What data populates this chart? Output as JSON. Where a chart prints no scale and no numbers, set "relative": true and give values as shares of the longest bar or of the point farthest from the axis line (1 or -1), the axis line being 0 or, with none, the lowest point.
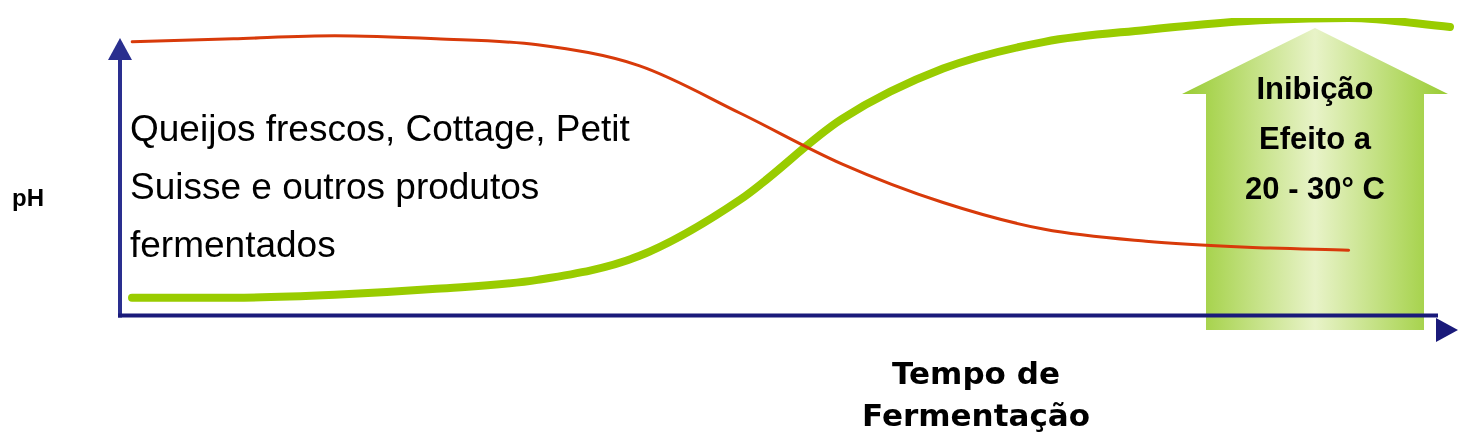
{
  "chart_data": {
    "type": "line",
    "relative": true,
    "grid": false,
    "legend": false,
    "marker": "none",
    "line_style": "solid",
    "xlabel": "Tempo de Fermentação",
    "ylabel": "pH",
    "categories": [
      null,
      null,
      null,
      null,
      null,
      null,
      null,
      null,
      null,
      null,
      null,
      null,
      null,
      null
    ],
    "series": [
      {
        "color": "#d83a0a",
        "values": [
          0.92,
          0.93,
          0.94,
          0.93,
          0.91,
          0.84,
          0.68,
          0.51,
          0.38,
          0.29,
          0.25,
          0.23,
          0.22,
          null
        ]
      },
      {
        "color": "#99cc00",
        "values": [
          0.06,
          0.06,
          0.07,
          0.09,
          0.12,
          0.2,
          0.39,
          0.66,
          0.83,
          0.92,
          0.96,
          0.99,
          1.0,
          0.97
        ]
      }
    ],
    "annotations": [
      "Queijos frescos, Cottage, Petit Suisse e outros produtos fermentados",
      "Inibição\nEfeito a\n20 - 30° C"
    ]
  }
}
